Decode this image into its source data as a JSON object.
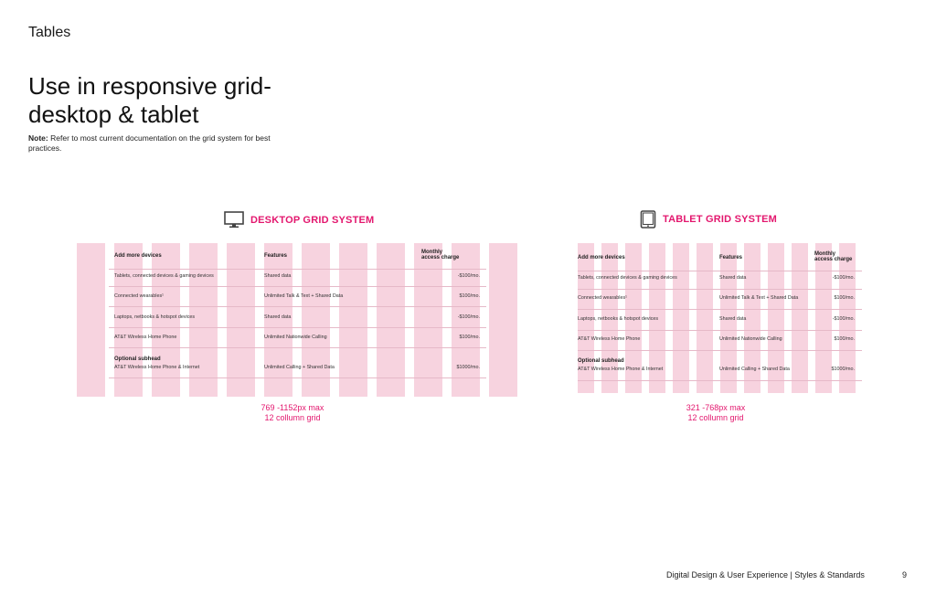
{
  "section": "Tables",
  "heading_line1": "Use in responsive grid-",
  "heading_line2": "desktop & tablet",
  "note_label": "Note:",
  "note_text": "Refer to most current documentation on the grid system for best practices.",
  "desktop": {
    "title": "DESKTOP GRID SYSTEM",
    "icon": "monitor-icon",
    "caption_line1": "769 -1152px max",
    "caption_line2": "12 collumn grid"
  },
  "tablet": {
    "title": "TABLET GRID SYSTEM",
    "icon": "tablet-icon",
    "caption_line1": "321 -768px max",
    "caption_line2": "12 collumn grid"
  },
  "table": {
    "headers": {
      "device": "Add more devices",
      "features": "Features",
      "charge_line1": "Monthly",
      "charge_line2": "access charge"
    },
    "rows": [
      {
        "device": "Tablets, connected devices & gaming devices",
        "features": "Shared data",
        "charge": "-$100/mo."
      },
      {
        "device": "Connected wearables¹",
        "features": "Unlimited Talk & Text + Shared Data",
        "charge": "$100/mo."
      },
      {
        "device": "Laptops, netbooks & hotspot devices",
        "features": "Shared data",
        "charge": "-$100/mo."
      },
      {
        "device": "AT&T Wireless Home Phone",
        "features": "Unlimited Nationwide Calling",
        "charge": "$100/mo."
      },
      {
        "subhead": "Optional subhead",
        "device": "AT&T Wireless Home Phone & Internet",
        "features": "Unlimited Calling + Shared Data",
        "charge": "$1000/mo."
      }
    ]
  },
  "footer": "Digital Design & User Experience | Styles & Standards",
  "page_number": "9",
  "colors": {
    "accent": "#e3176e",
    "grid_column": "#f7d3df",
    "text": "#1a1a1a"
  }
}
